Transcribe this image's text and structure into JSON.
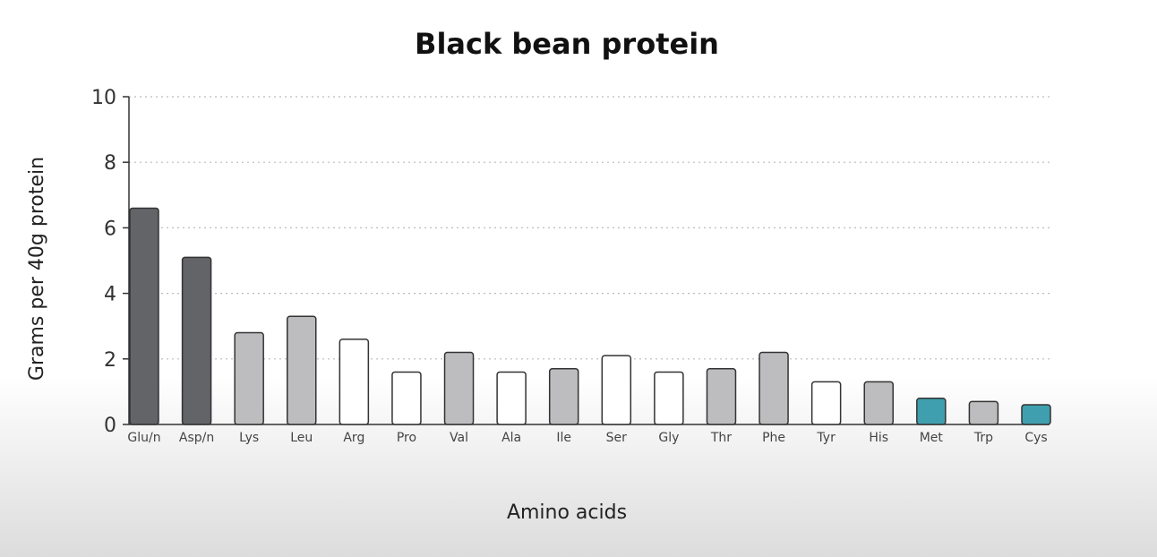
{
  "chart_data": {
    "type": "bar",
    "title": "Black bean protein",
    "xlabel": "Amino acids",
    "ylabel": "Grams per 40g protein",
    "ylim": [
      0,
      10
    ],
    "yticks": [
      "0",
      "2",
      "4",
      "6",
      "8",
      "10"
    ],
    "grid": "horizontal dotted",
    "categories": [
      "Glu/n",
      "Asp/n",
      "Lys",
      "Leu",
      "Arg",
      "Pro",
      "Val",
      "Ala",
      "Ile",
      "Ser",
      "Gly",
      "Thr",
      "Phe",
      "Tyr",
      "His",
      "Met",
      "Trp",
      "Cys"
    ],
    "values": [
      6.6,
      5.1,
      2.8,
      3.3,
      2.6,
      1.6,
      2.2,
      1.6,
      1.7,
      2.1,
      1.6,
      1.7,
      2.2,
      1.3,
      1.3,
      0.8,
      0.7,
      0.6
    ],
    "bar_colors": [
      "#636468",
      "#636468",
      "#bdbdbf",
      "#bdbdbf",
      "#ffffff",
      "#ffffff",
      "#bdbdbf",
      "#ffffff",
      "#bdbdbf",
      "#ffffff",
      "#ffffff",
      "#bdbdbf",
      "#bdbdbf",
      "#ffffff",
      "#bdbdbf",
      "#3f9fae",
      "#bdbdbf",
      "#3f9fae"
    ],
    "bar_stroke": "#333333"
  }
}
